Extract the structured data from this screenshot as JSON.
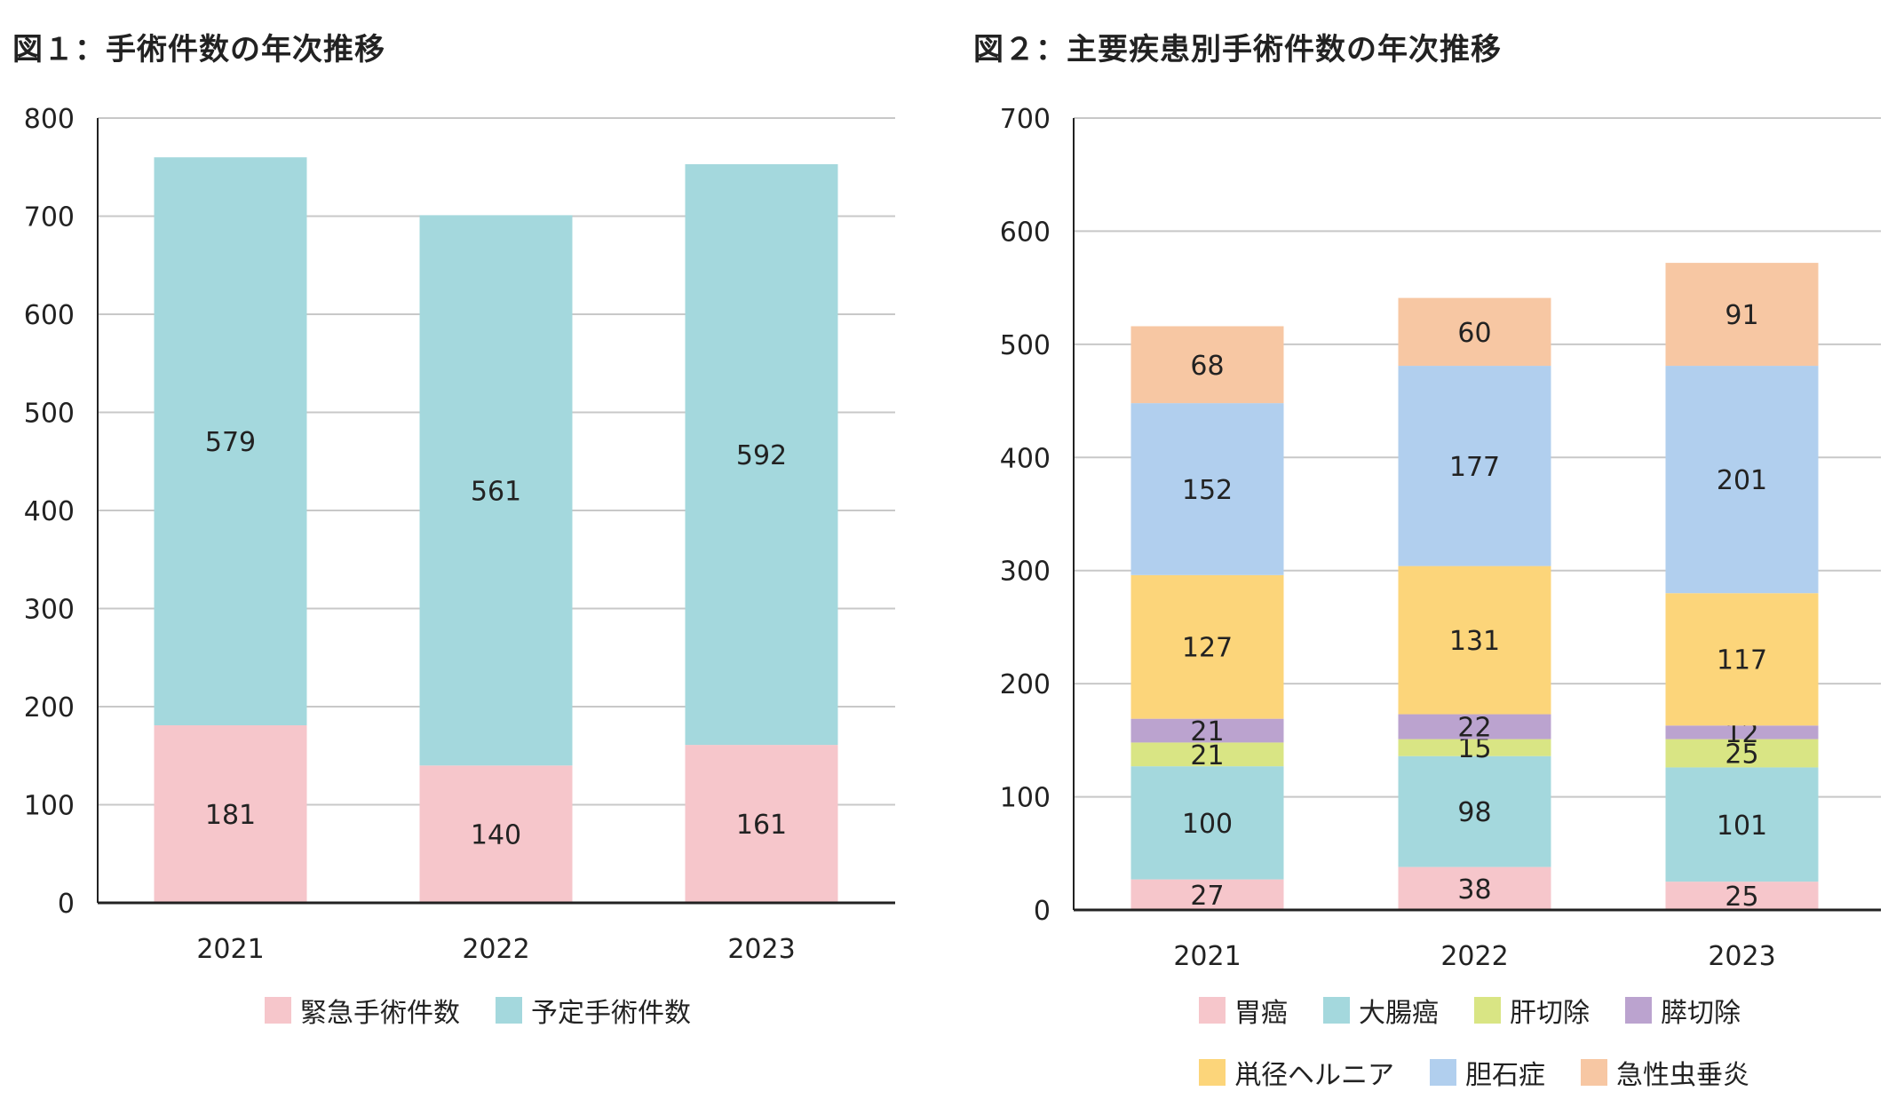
{
  "chart_data": [
    {
      "type": "bar",
      "stacked": true,
      "title": "図１：手術件数の年次推移",
      "categories": [
        "2021",
        "2022",
        "2023"
      ],
      "ylim": [
        0,
        800
      ],
      "yticks": [
        0,
        100,
        200,
        300,
        400,
        500,
        600,
        700,
        800
      ],
      "grid": true,
      "legend_position": "bottom",
      "series": [
        {
          "name": "緊急手術件数",
          "values": [
            181,
            140,
            161
          ],
          "color": "#F6C6CB"
        },
        {
          "name": "予定手術件数",
          "values": [
            579,
            561,
            592
          ],
          "color": "#A4D8DD"
        }
      ]
    },
    {
      "type": "bar",
      "stacked": true,
      "title": "図２：主要疾患別手術件数の年次推移",
      "categories": [
        "2021",
        "2022",
        "2023"
      ],
      "ylim": [
        0,
        700
      ],
      "yticks": [
        0,
        100,
        200,
        300,
        400,
        500,
        600,
        700
      ],
      "grid": true,
      "legend_position": "bottom",
      "series": [
        {
          "name": "胃癌",
          "values": [
            27,
            38,
            25
          ],
          "color": "#F6C6CB"
        },
        {
          "name": "大腸癌",
          "values": [
            100,
            98,
            101
          ],
          "color": "#A4D8DD"
        },
        {
          "name": "肝切除",
          "values": [
            21,
            15,
            25
          ],
          "color": "#D9E584"
        },
        {
          "name": "膵切除",
          "values": [
            21,
            22,
            12
          ],
          "color": "#BBA3CF"
        },
        {
          "name": "鼡径ヘルニア",
          "values": [
            127,
            131,
            117
          ],
          "color": "#FCD57A"
        },
        {
          "name": "胆石症",
          "values": [
            152,
            177,
            201
          ],
          "color": "#B1CFEE"
        },
        {
          "name": "急性虫垂炎",
          "values": [
            68,
            60,
            91
          ],
          "color": "#F7C7A3"
        }
      ]
    }
  ]
}
